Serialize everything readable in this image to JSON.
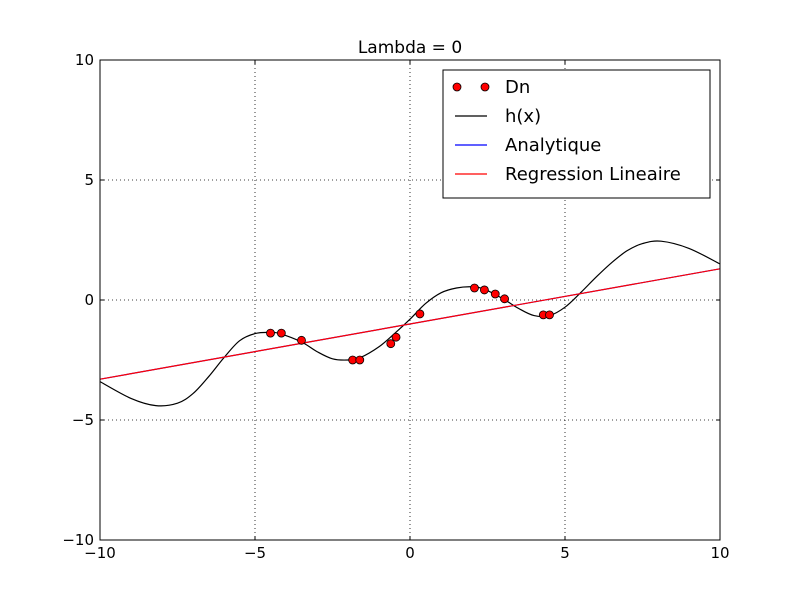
{
  "chart_data": {
    "type": "line",
    "title": "Lambda = 0",
    "xlabel": "",
    "ylabel": "",
    "xlim": [
      -10,
      10
    ],
    "ylim": [
      -10,
      10
    ],
    "grid": true,
    "legend_position": "top-right",
    "xticks": [
      {
        "value": -10,
        "label": "−10"
      },
      {
        "value": -5,
        "label": "−5"
      },
      {
        "value": 0,
        "label": "0"
      },
      {
        "value": 5,
        "label": "5"
      },
      {
        "value": 10,
        "label": "10"
      }
    ],
    "yticks": [
      {
        "value": -10,
        "label": "−10"
      },
      {
        "value": -5,
        "label": "−5"
      },
      {
        "value": 0,
        "label": "0"
      },
      {
        "value": 5,
        "label": "5"
      },
      {
        "value": 10,
        "label": "10"
      }
    ],
    "series": [
      {
        "name": "Dn",
        "kind": "points",
        "color": "#ff0000",
        "x": [
          -4.5,
          -4.15,
          -3.5,
          -1.85,
          -1.62,
          -0.62,
          -0.45,
          0.32,
          2.08,
          2.4,
          2.75,
          3.05,
          4.3,
          4.5
        ],
        "y": [
          -1.38,
          -1.38,
          -1.68,
          -2.5,
          -2.5,
          -1.82,
          -1.55,
          -0.58,
          0.5,
          0.42,
          0.25,
          0.05,
          -0.62,
          -0.62
        ]
      },
      {
        "name": "h(x)",
        "kind": "curve",
        "color": "#000000",
        "x": [
          -10,
          -9,
          -8.2,
          -7.5,
          -7,
          -6.5,
          -6,
          -5.5,
          -5,
          -4.5,
          -4.2,
          -3.5,
          -3,
          -2.5,
          -2,
          -1.6,
          -1,
          -0.5,
          0,
          0.5,
          1,
          1.5,
          2,
          2.4,
          3,
          3.5,
          4,
          4.5,
          5,
          5.5,
          6,
          6.5,
          7,
          7.5,
          8.1,
          9,
          10
        ],
        "y": [
          -3.4,
          -4.1,
          -4.4,
          -4.3,
          -3.9,
          -3.2,
          -2.4,
          -1.7,
          -1.4,
          -1.35,
          -1.4,
          -1.75,
          -2.15,
          -2.45,
          -2.5,
          -2.4,
          -1.95,
          -1.4,
          -0.8,
          -0.15,
          0.3,
          0.5,
          0.55,
          0.45,
          0.05,
          -0.35,
          -0.65,
          -0.65,
          -0.3,
          0.3,
          0.95,
          1.55,
          2.05,
          2.35,
          2.45,
          2.15,
          1.5
        ]
      },
      {
        "name": "Analytique",
        "kind": "line",
        "color": "#0000ff",
        "x": [
          -10,
          10
        ],
        "y": [
          -3.3,
          1.3
        ]
      },
      {
        "name": "Regression Lineaire",
        "kind": "line",
        "color": "#ff0000",
        "x": [
          -10,
          10
        ],
        "y": [
          -3.3,
          1.3
        ]
      }
    ]
  }
}
